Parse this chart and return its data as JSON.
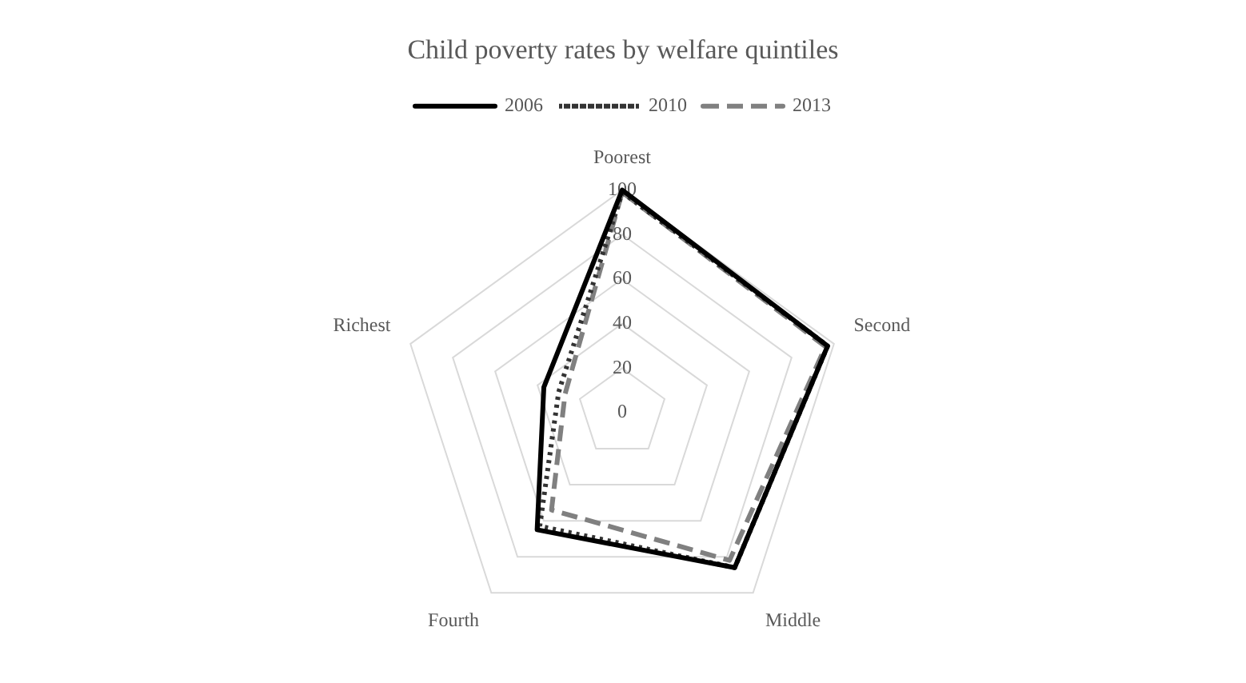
{
  "chart_data": {
    "type": "radar",
    "title": "Child poverty rates by welfare quintiles",
    "categories": [
      "Poorest",
      "Second",
      "Middle",
      "Fourth",
      "Richest"
    ],
    "series": [
      {
        "name": "2006",
        "color": "#000000",
        "line_style": "solid",
        "values": [
          100,
          97,
          86,
          65,
          37
        ]
      },
      {
        "name": "2010",
        "color": "#333333",
        "line_style": "dotted",
        "values": [
          99,
          97,
          86,
          63,
          30
        ]
      },
      {
        "name": "2013",
        "color": "#808080",
        "line_style": "dashed",
        "values": [
          99,
          96,
          82,
          54,
          27
        ]
      }
    ],
    "ylim": [
      0,
      100
    ],
    "yticks": [
      0,
      20,
      40,
      60,
      80,
      100
    ],
    "grid": true,
    "legend": "top",
    "marker": "none"
  }
}
